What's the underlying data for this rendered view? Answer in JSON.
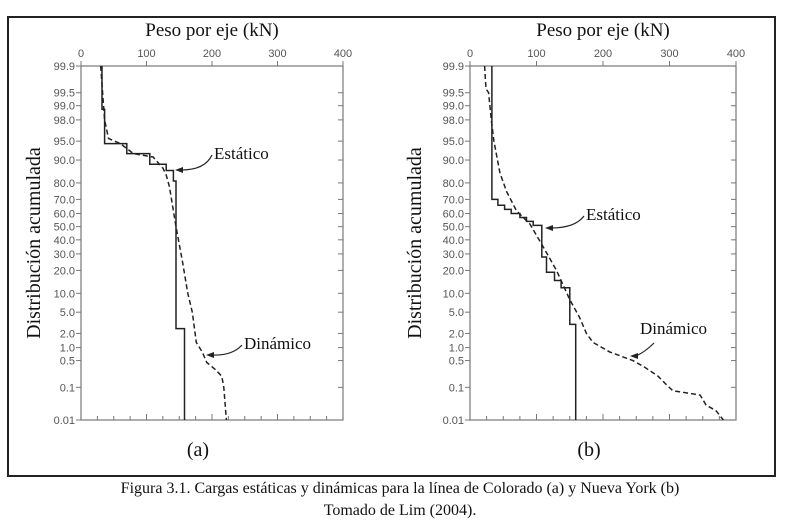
{
  "caption": {
    "line1": "Figura 3.1. Cargas estáticas y dinámicas para  la línea de Colorado (a) y Nueva York (b)",
    "line2": "Tomado de Lim (2004)."
  },
  "chart_data": [
    {
      "type": "line",
      "panel_label": "(a)",
      "xlabel": "Peso por eje (kN)",
      "ylabel": "Distribución acumulada",
      "xlim": [
        0,
        400
      ],
      "xticks": [
        "0",
        "100",
        "200",
        "300",
        "400"
      ],
      "y_scale": "normal-probability",
      "ylim": [
        0.01,
        99.9
      ],
      "yticks": [
        "99.9",
        "99.5",
        "99.0",
        "98.0",
        "95.0",
        "90.0",
        "80.0",
        "70.0",
        "60.0",
        "50.0",
        "40.0",
        "30.0",
        "20.0",
        "10.0",
        "5.0",
        "2.0",
        "1.0",
        "0.5",
        "0.1",
        "0.01"
      ],
      "series": [
        {
          "name": "Estático",
          "style": "solid",
          "color": "#222222",
          "points": [
            [
              32,
              99.9
            ],
            [
              32,
              98.8
            ],
            [
              36,
              98.8
            ],
            [
              36,
              94.5
            ],
            [
              70,
              94.5
            ],
            [
              70,
              92
            ],
            [
              105,
              92
            ],
            [
              105,
              88.5
            ],
            [
              130,
              88.5
            ],
            [
              130,
              86
            ],
            [
              141,
              86
            ],
            [
              141,
              81
            ],
            [
              145,
              81
            ],
            [
              145,
              2.5
            ],
            [
              158,
              2.5
            ],
            [
              158,
              0.01
            ]
          ]
        },
        {
          "name": "Dinámico",
          "style": "dashed",
          "color": "#222222",
          "points": [
            [
              30,
              99.9
            ],
            [
              33,
              99.5
            ],
            [
              36,
              98
            ],
            [
              42,
              95.5
            ],
            [
              60,
              94.5
            ],
            [
              80,
              92
            ],
            [
              110,
              91
            ],
            [
              125,
              87
            ],
            [
              130,
              84
            ],
            [
              135,
              78
            ],
            [
              145,
              50
            ],
            [
              155,
              25
            ],
            [
              163,
              10
            ],
            [
              170,
              5
            ],
            [
              176,
              1.3
            ],
            [
              185,
              0.8
            ],
            [
              192,
              0.45
            ],
            [
              205,
              0.3
            ],
            [
              215,
              0.2
            ],
            [
              218,
              0.1
            ],
            [
              222,
              0.01
            ]
          ]
        }
      ],
      "annotations": [
        "Estático",
        "Dinámico"
      ]
    },
    {
      "type": "line",
      "panel_label": "(b)",
      "xlabel": "Peso por eje (kN)",
      "ylabel": "Distribución acumulada",
      "xlim": [
        0,
        400
      ],
      "xticks": [
        "0",
        "100",
        "200",
        "300",
        "400"
      ],
      "y_scale": "normal-probability",
      "ylim": [
        0.01,
        99.9
      ],
      "yticks": [
        "99.9",
        "99.5",
        "99.0",
        "98.0",
        "95.0",
        "90.0",
        "80.0",
        "70.0",
        "60.0",
        "50.0",
        "40.0",
        "30.0",
        "20.0",
        "10.0",
        "5.0",
        "2.0",
        "1.0",
        "0.5",
        "0.1",
        "0.01"
      ],
      "series": [
        {
          "name": "Estático",
          "style": "solid",
          "color": "#222222",
          "points": [
            [
              33,
              99.9
            ],
            [
              33,
              70
            ],
            [
              42,
              70
            ],
            [
              42,
              66
            ],
            [
              52,
              66
            ],
            [
              52,
              63
            ],
            [
              62,
              63
            ],
            [
              62,
              60
            ],
            [
              75,
              60
            ],
            [
              75,
              57
            ],
            [
              85,
              57
            ],
            [
              85,
              54
            ],
            [
              95,
              54
            ],
            [
              95,
              51
            ],
            [
              108,
              51
            ],
            [
              108,
              28
            ],
            [
              115,
              28
            ],
            [
              115,
              19
            ],
            [
              127,
              19
            ],
            [
              127,
              15
            ],
            [
              137,
              15
            ],
            [
              137,
              12
            ],
            [
              150,
              12
            ],
            [
              150,
              3
            ],
            [
              159,
              3
            ],
            [
              159,
              0.01
            ]
          ]
        },
        {
          "name": "Dinámico",
          "style": "dashed",
          "color": "#222222",
          "points": [
            [
              22,
              99.9
            ],
            [
              24,
              99.6
            ],
            [
              28,
              99.5
            ],
            [
              32,
              98
            ],
            [
              36,
              95
            ],
            [
              45,
              85
            ],
            [
              55,
              75
            ],
            [
              70,
              62
            ],
            [
              90,
              52
            ],
            [
              110,
              35
            ],
            [
              130,
              20
            ],
            [
              150,
              8
            ],
            [
              165,
              4
            ],
            [
              175,
              2
            ],
            [
              185,
              1.3
            ],
            [
              210,
              0.8
            ],
            [
              245,
              0.5
            ],
            [
              262,
              0.35
            ],
            [
              283,
              0.2
            ],
            [
              295,
              0.12
            ],
            [
              305,
              0.08
            ],
            [
              346,
              0.06
            ],
            [
              355,
              0.03
            ],
            [
              370,
              0.02
            ],
            [
              381,
              0.01
            ]
          ]
        }
      ],
      "annotations": [
        "Estático",
        "Dinámico"
      ]
    }
  ]
}
